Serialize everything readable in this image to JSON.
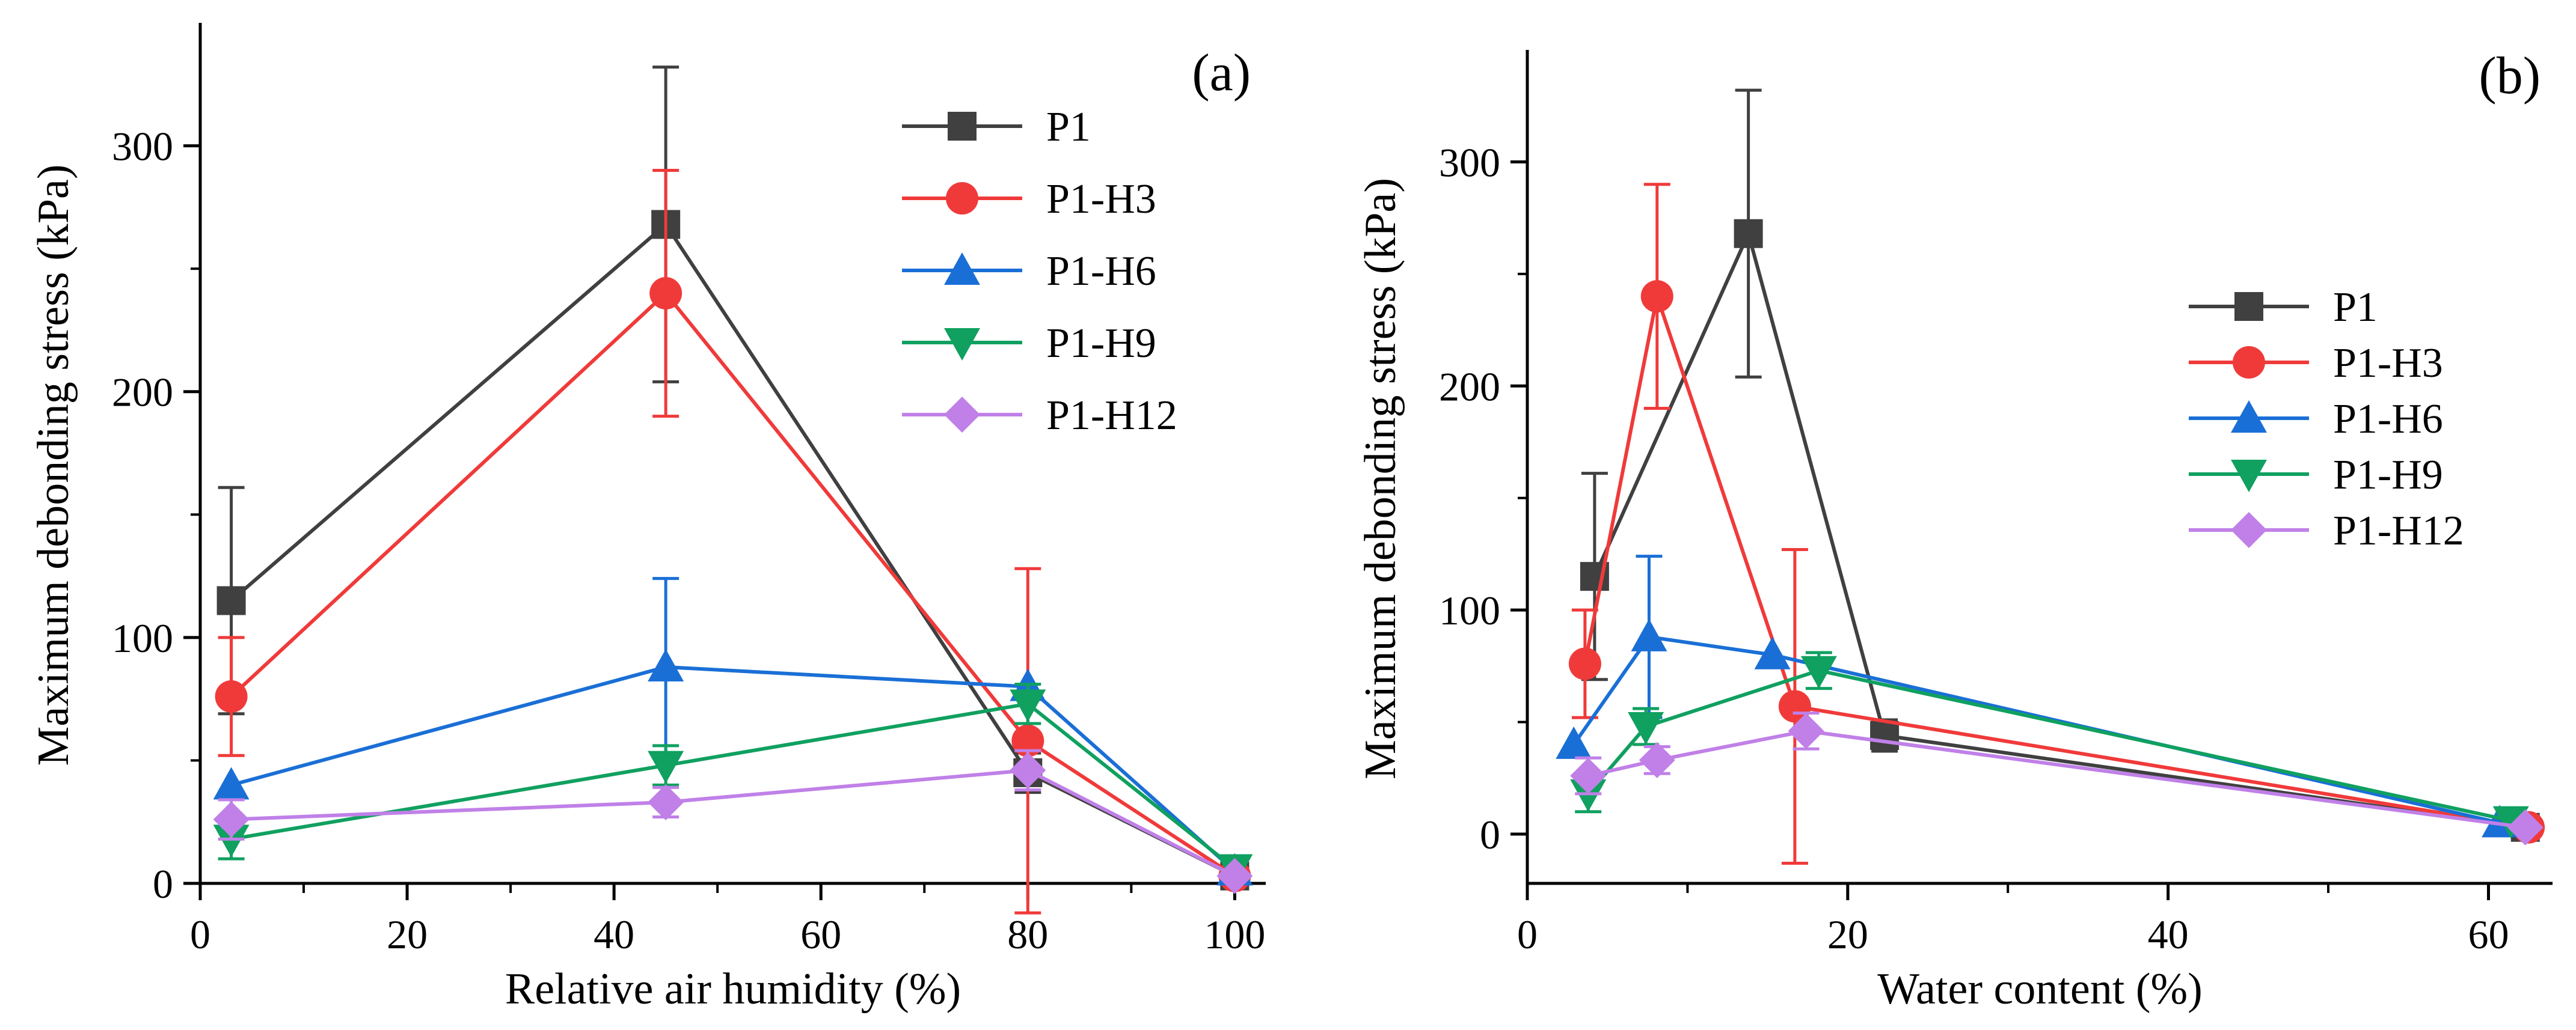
{
  "chart_data": [
    {
      "panel": "(a)",
      "type": "line",
      "xlabel": "Relative air humidity (%)",
      "ylabel": "Maximum debonding stress (kPa)",
      "xlim": [
        0,
        103
      ],
      "ylim": [
        0,
        350
      ],
      "xticks": [
        0,
        20,
        40,
        60,
        80,
        100
      ],
      "yticks": [
        0,
        100,
        200,
        300
      ],
      "legend_position": "top-right",
      "series": [
        {
          "name": "P1",
          "color": "#404040",
          "marker": "square",
          "points": [
            {
              "x": 3,
              "y": 115,
              "err": 46
            },
            {
              "x": 45,
              "y": 268,
              "err": 64
            },
            {
              "x": 80,
              "y": 45,
              "err": 8
            },
            {
              "x": 100,
              "y": 3,
              "err": 0
            }
          ]
        },
        {
          "name": "P1-H3",
          "color": "#f03a3a",
          "marker": "circle",
          "points": [
            {
              "x": 3,
              "y": 76,
              "err": 24
            },
            {
              "x": 45,
              "y": 240,
              "err": 50
            },
            {
              "x": 80,
              "y": 58,
              "err": 70
            },
            {
              "x": 100,
              "y": 3,
              "err": 0
            }
          ]
        },
        {
          "name": "P1-H6",
          "color": "#1a6fd6",
          "marker": "triangle-up",
          "points": [
            {
              "x": 3,
              "y": 40,
              "err": 0
            },
            {
              "x": 45,
              "y": 88,
              "err": 36
            },
            {
              "x": 80,
              "y": 80,
              "err": 0
            },
            {
              "x": 100,
              "y": 5,
              "err": 0
            }
          ]
        },
        {
          "name": "P1-H9",
          "color": "#10a060",
          "marker": "triangle-down",
          "points": [
            {
              "x": 3,
              "y": 18,
              "err": 8
            },
            {
              "x": 45,
              "y": 48,
              "err": 8
            },
            {
              "x": 80,
              "y": 73,
              "err": 8
            },
            {
              "x": 100,
              "y": 6,
              "err": 0
            }
          ]
        },
        {
          "name": "P1-H12",
          "color": "#c080e8",
          "marker": "diamond",
          "points": [
            {
              "x": 3,
              "y": 26,
              "err": 8
            },
            {
              "x": 45,
              "y": 33,
              "err": 6
            },
            {
              "x": 80,
              "y": 46,
              "err": 8
            },
            {
              "x": 100,
              "y": 3,
              "err": 0
            }
          ]
        }
      ]
    },
    {
      "panel": "(b)",
      "type": "line",
      "xlabel": "Water content (%)",
      "ylabel": "Maximum debonding stress (kPa)",
      "xlim": [
        0,
        64
      ],
      "ylim": [
        -22,
        350
      ],
      "xticks": [
        0,
        20,
        40,
        60
      ],
      "yticks": [
        0,
        100,
        200,
        300
      ],
      "legend_position": "center-right",
      "series": [
        {
          "name": "P1",
          "color": "#404040",
          "marker": "square",
          "points": [
            {
              "x": 4.2,
              "y": 115,
              "err": 46
            },
            {
              "x": 13.8,
              "y": 268,
              "err": 64
            },
            {
              "x": 22.3,
              "y": 44,
              "err": 7
            },
            {
              "x": 62.3,
              "y": 3,
              "err": 0
            }
          ]
        },
        {
          "name": "P1-H3",
          "color": "#f03a3a",
          "marker": "circle",
          "points": [
            {
              "x": 3.6,
              "y": 76,
              "err": 24
            },
            {
              "x": 8.1,
              "y": 240,
              "err": 50
            },
            {
              "x": 16.7,
              "y": 57,
              "err": 70
            },
            {
              "x": 62.5,
              "y": 3,
              "err": 0
            }
          ]
        },
        {
          "name": "P1-H6",
          "color": "#1a6fd6",
          "marker": "triangle-up",
          "points": [
            {
              "x": 2.9,
              "y": 40,
              "err": 0
            },
            {
              "x": 7.6,
              "y": 88,
              "err": 36
            },
            {
              "x": 15.3,
              "y": 80,
              "err": 0
            },
            {
              "x": 60.7,
              "y": 5,
              "err": 0
            }
          ]
        },
        {
          "name": "P1-H9",
          "color": "#10a060",
          "marker": "triangle-down",
          "points": [
            {
              "x": 3.8,
              "y": 18,
              "err": 8
            },
            {
              "x": 7.4,
              "y": 48,
              "err": 8
            },
            {
              "x": 18.2,
              "y": 73,
              "err": 8
            },
            {
              "x": 61.4,
              "y": 6,
              "err": 0
            }
          ]
        },
        {
          "name": "P1-H12",
          "color": "#c080e8",
          "marker": "diamond",
          "points": [
            {
              "x": 3.8,
              "y": 26,
              "err": 8
            },
            {
              "x": 8.1,
              "y": 33,
              "err": 6
            },
            {
              "x": 17.4,
              "y": 46,
              "err": 8
            },
            {
              "x": 62.3,
              "y": 3,
              "err": 0
            }
          ]
        }
      ]
    }
  ]
}
